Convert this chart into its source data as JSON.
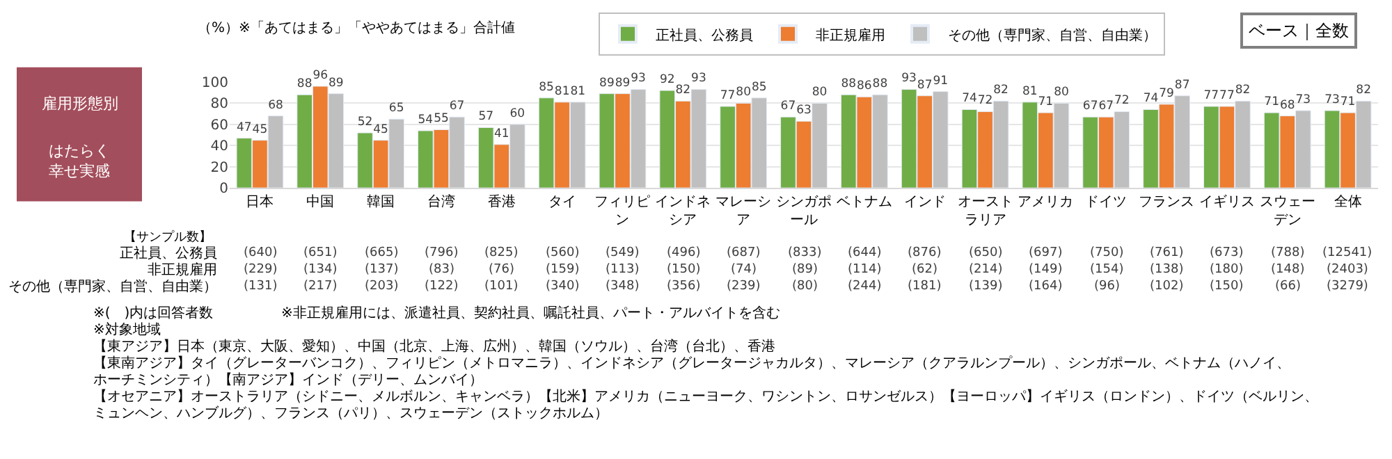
{
  "chart_data": {
    "type": "bar",
    "categories": [
      "日本",
      "中国",
      "韓国",
      "台湾",
      "香港",
      "タイ",
      "フィリピン",
      "インドネシア",
      "マレーシア",
      "シンガポール",
      "ベトナム",
      "インド",
      "オーストラリア",
      "アメリカ",
      "ドイツ",
      "フランス",
      "イギリス",
      "スウェーデン",
      "全体"
    ],
    "series": [
      {
        "name": "正社員、公務員",
        "color": "#70ad47",
        "values": [
          47,
          88,
          52,
          54,
          57,
          85,
          89,
          92,
          77,
          67,
          88,
          93,
          74,
          81,
          67,
          74,
          77,
          71,
          73
        ]
      },
      {
        "name": "非正規雇用",
        "color": "#ed7d31",
        "values": [
          45,
          96,
          45,
          55,
          41,
          81,
          89,
          82,
          80,
          63,
          86,
          87,
          72,
          71,
          67,
          79,
          77,
          68,
          71
        ]
      },
      {
        "name": "その他（専門家、自営、自由業）",
        "color": "#bfbfbf",
        "values": [
          68,
          89,
          65,
          67,
          60,
          81,
          93,
          93,
          85,
          80,
          88,
          91,
          82,
          80,
          72,
          87,
          82,
          73,
          82
        ]
      }
    ],
    "ylim": [
      0,
      100
    ],
    "yticks": [
      0,
      20,
      40,
      60,
      80,
      100
    ],
    "grid": "y",
    "legend": "top",
    "data_labels": true,
    "annotations": [
      "（%）※「あてはまる」「ややあてはまる」合計値",
      "ベース｜全数",
      "雇用形態別",
      "はたらく幸せ実感",
      "【サンプル数】",
      "正社員、公務員",
      "(640)",
      "(651)",
      "(665)",
      "(796)",
      "(825)",
      "(560)",
      "(549)",
      "(496)",
      "(687)",
      "(833)",
      "(644)",
      "(876)",
      "(650)",
      "(697)",
      "(750)",
      "(761)",
      "(673)",
      "(788)",
      "(12541)",
      "非正規雇用",
      "(229)",
      "(134)",
      "(137)",
      "(83)",
      "(76)",
      "(159)",
      "(113)",
      "(150)",
      "(74)",
      "(89)",
      "(114)",
      "(62)",
      "(214)",
      "(149)",
      "(154)",
      "(138)",
      "(180)",
      "(148)",
      "(2403)",
      "その他（専門家、自営、自由業）",
      "(131)",
      "(217)",
      "(203)",
      "(122)",
      "(101)",
      "(340)",
      "(348)",
      "(356)",
      "(239)",
      "(80)",
      "(244)",
      "(181)",
      "(139)",
      "(164)",
      "(96)",
      "(102)",
      "(150)",
      "(66)",
      "(3279)",
      "※(　)内は回答者数",
      "※非正規雇用には、派遣社員、契約社員、嘱託社員、パート・アルバイトを含む",
      "※対象地域",
      "【東アジア】日本（東京、大阪、愛知）、中国（北京、上海、広州）、韓国（ソウル）、台湾（台北）、香港",
      "【東南アジア】タイ（グレーターバンコク）、フィリピン（メトロマニラ）、インドネシア（グレータージャカルタ）、マレーシア（クアラルンプール）、シンガポール、ベトナム（ハノイ、ホーチミンシティ）【南アジア】インド（デリー、ムンバイ）",
      "【オセアニア】オーストラリア（シドニー、メルボルン、キャンベラ）【北米】アメリカ（ニューヨーク、ワシントン、ロサンゼルス）【ヨーロッパ】イギリス（ロンドン）、ドイツ（ベルリン、ミュンヘン、ハンブルグ）、フランス（パリ）、スウェーデン（ストックホルム）"
    ]
  }
}
